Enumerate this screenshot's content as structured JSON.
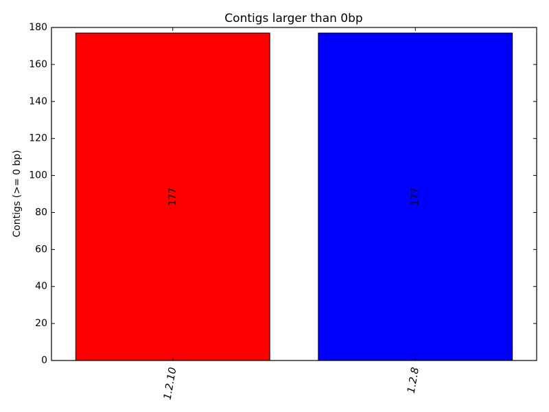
{
  "chart_data": {
    "type": "bar",
    "title": "Contigs larger than 0bp",
    "ylabel": "Contigs (>= 0 bp)",
    "xlabel": "",
    "categories": [
      "1.2.10",
      "1.2.8"
    ],
    "values": [
      177,
      177
    ],
    "data_labels": [
      "177",
      "177"
    ],
    "colors": [
      "#ff0000",
      "#0000ff"
    ],
    "ylim": [
      0,
      180
    ],
    "yticks": [
      0,
      20,
      40,
      60,
      80,
      100,
      120,
      140,
      160,
      180
    ],
    "grid": false,
    "legend": "none"
  }
}
